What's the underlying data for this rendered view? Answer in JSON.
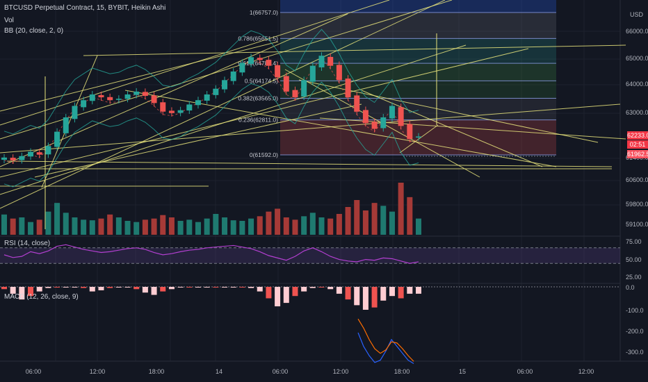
{
  "legend": {
    "main": "BTCUSD Perpetual Contract, 15, BYBIT, Heikin Ashi",
    "vol": "Vol",
    "bb": "BB (20, close, 2, 0)",
    "rsi": "RSI (14, close)",
    "macd": "MACD (12, 26, close, 9)"
  },
  "currency": "USD",
  "badges": {
    "last_price": "62233.0",
    "countdown": "02:51",
    "bb_lower": "61962.5",
    "last_color": "#f23645",
    "bb_color": "#f7525f"
  },
  "colors": {
    "up": "#26a69a",
    "down": "#ef5350",
    "fib_line": "#8c9fe8",
    "trend": "#e8e47c",
    "rsi_line": "#b33fd1",
    "macd_line": "#2962ff",
    "signal_line": "#ff6d00"
  },
  "chart_data": [
    {
      "type": "candlestick",
      "title": "BTCUSD Perpetual Contract, 15, BYBIT, Heikin Ashi",
      "y_ticks": [
        "66000.0",
        "65000.0",
        "64000.0",
        "63000.0",
        "61400.0",
        "60600.0",
        "59800.0",
        "59100.0"
      ],
      "x_ticks": [
        "06:00",
        "12:00",
        "18:00",
        "14",
        "06:00",
        "12:00",
        "18:00",
        "15",
        "06:00",
        "12:00"
      ],
      "fib_levels": [
        {
          "ratio": "1",
          "price": "66757.0",
          "label": "1(66757.0)"
        },
        {
          "ratio": "0.786",
          "price": "65651.5",
          "label": "0.786(65651.5)"
        },
        {
          "ratio": "0.618",
          "price": "64787.4",
          "label": "0.618(64787.4)"
        },
        {
          "ratio": "0.5",
          "price": "64174.5",
          "label": "0.5(64174.5)"
        },
        {
          "ratio": "0.382",
          "price": "63565.0",
          "label": "0.382(63565.0)"
        },
        {
          "ratio": "0.236",
          "price": "62811.0",
          "label": "0.236(62811.0)"
        },
        {
          "ratio": "0",
          "price": "61592.0",
          "label": "0(61592.0)"
        }
      ],
      "close_series": [
        61500,
        61400,
        61550,
        61700,
        61600,
        61900,
        62400,
        62900,
        63300,
        63500,
        63700,
        63600,
        63500,
        63550,
        63700,
        63800,
        63650,
        63400,
        63100,
        63050,
        63150,
        63350,
        63500,
        63700,
        63900,
        64200,
        64500,
        64800,
        65000,
        64900,
        64700,
        64300,
        63800,
        63600,
        64200,
        64700,
        65050,
        64700,
        64200,
        63600,
        63100,
        62700,
        62500,
        62900,
        63300,
        62600,
        62150,
        62233
      ],
      "volume": [
        35,
        28,
        30,
        22,
        26,
        40,
        55,
        38,
        30,
        26,
        25,
        28,
        35,
        30,
        24,
        22,
        26,
        28,
        34,
        30,
        24,
        26,
        22,
        28,
        36,
        30,
        25,
        24,
        28,
        32,
        40,
        45,
        30,
        26,
        32,
        38,
        30,
        28,
        36,
        48,
        60,
        42,
        55,
        50,
        40,
        90,
        65,
        28
      ]
    },
    {
      "type": "line",
      "title": "RSI (14, close)",
      "y_ticks": [
        "75.00",
        "50.00",
        "25.00"
      ],
      "values": [
        52,
        45,
        48,
        60,
        55,
        62,
        74,
        78,
        72,
        66,
        62,
        58,
        60,
        64,
        68,
        70,
        66,
        58,
        52,
        55,
        60,
        64,
        66,
        70,
        72,
        74,
        76,
        72,
        68,
        60,
        50,
        44,
        38,
        48,
        62,
        70,
        60,
        48,
        40,
        36,
        34,
        40,
        38,
        44,
        42,
        36,
        30,
        34
      ]
    },
    {
      "type": "bar+line",
      "title": "MACD (12, 26, close, 9)",
      "y_ticks": [
        "0.0",
        "-100.0",
        "-200.0",
        "-300.0"
      ],
      "histogram": [
        -10,
        -30,
        -55,
        -40,
        -20,
        -5,
        0,
        0,
        0,
        -5,
        -20,
        -15,
        -5,
        0,
        0,
        -10,
        -25,
        -35,
        -20,
        -10,
        0,
        0,
        0,
        0,
        0,
        0,
        0,
        0,
        -5,
        -20,
        -50,
        -85,
        -70,
        -40,
        -20,
        -5,
        0,
        -10,
        -30,
        -55,
        -80,
        -100,
        -90,
        -60,
        -40,
        -50,
        -30,
        -30
      ],
      "macd": [
        -200,
        -260,
        -300,
        -330,
        -320,
        -280,
        -230,
        -260,
        -290,
        -320,
        -335
      ],
      "signal": [
        -140,
        -180,
        -230,
        -270,
        -290,
        -275,
        -240,
        -245,
        -270,
        -300,
        -325
      ]
    }
  ]
}
